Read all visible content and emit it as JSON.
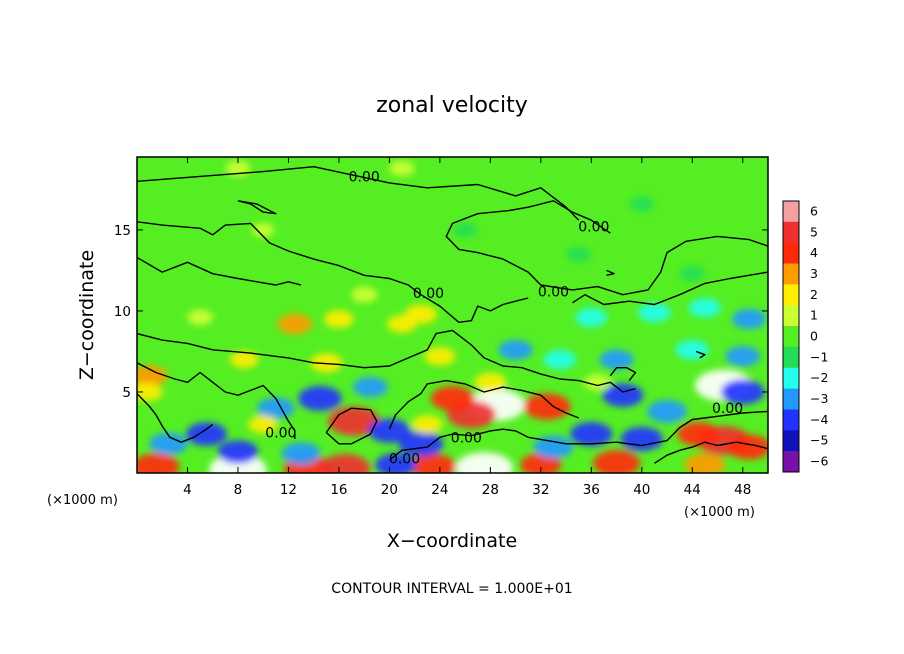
{
  "chart_data": {
    "type": "heatmap",
    "title": "zonal velocity",
    "xlabel": "X−coordinate",
    "ylabel": "Z−coordinate",
    "x_unit_left": "(×1000 m)",
    "x_unit_right": "(×1000 m)",
    "xlim": [
      0,
      50
    ],
    "ylim": [
      0,
      19.5
    ],
    "x_ticks": [
      4,
      8,
      12,
      16,
      20,
      24,
      28,
      32,
      36,
      40,
      44,
      48
    ],
    "y_ticks": [
      5,
      10,
      15
    ],
    "colorbar": {
      "ticks": [
        6,
        5,
        4,
        3,
        2,
        1,
        0,
        -1,
        -2,
        -3,
        -4,
        -5,
        -6
      ],
      "tick_labels": [
        "6",
        "5",
        "4",
        "3",
        "2",
        "1",
        "0",
        "−1",
        "−2",
        "−3",
        "−4",
        "−5",
        "−6"
      ],
      "colors": [
        "#f4a0a0",
        "#f03030",
        "#ff2a0a",
        "#ff9a00",
        "#ffee00",
        "#ccff33",
        "#55ee22",
        "#22dd55",
        "#22ffee",
        "#2299ff",
        "#2233ff",
        "#1111bb",
        "#7711aa"
      ]
    },
    "contour_labels": [
      {
        "text": "0.00",
        "x": 18.0,
        "z": 18.3
      },
      {
        "text": "0.00",
        "x": 36.2,
        "z": 15.2
      },
      {
        "text": "0.00",
        "x": 23.1,
        "z": 11.1
      },
      {
        "text": "0.00",
        "x": 33.0,
        "z": 11.2
      },
      {
        "text": "0.00",
        "x": 46.8,
        "z": 4.0
      },
      {
        "text": "0.00",
        "x": 11.4,
        "z": 2.5
      },
      {
        "text": "0.00",
        "x": 26.1,
        "z": 2.2
      },
      {
        "text": "0.00",
        "x": 21.2,
        "z": 0.9
      }
    ],
    "blobs": [
      {
        "x": 28.5,
        "z": 4.2,
        "v": 6.2
      },
      {
        "x": 26.5,
        "z": 3.6,
        "v": 4.8
      },
      {
        "x": 25.0,
        "z": 4.6,
        "v": 4.0
      },
      {
        "x": 32.5,
        "z": 4.1,
        "v": 4.5
      },
      {
        "x": 17.2,
        "z": 3.2,
        "v": 5.3
      },
      {
        "x": 46.5,
        "z": 2.0,
        "v": 5.4
      },
      {
        "x": 44.5,
        "z": 2.4,
        "v": 3.8
      },
      {
        "x": 48.5,
        "z": 1.6,
        "v": 4.0
      },
      {
        "x": 27.5,
        "z": 0.3,
        "v": 6.2
      },
      {
        "x": 8.0,
        "z": 0.2,
        "v": 6.2
      },
      {
        "x": 1.5,
        "z": 0.4,
        "v": 4.5
      },
      {
        "x": 13.5,
        "z": 0.3,
        "v": 4.5
      },
      {
        "x": 16.5,
        "z": 0.3,
        "v": 5.0
      },
      {
        "x": 23.5,
        "z": 0.4,
        "v": 4.2
      },
      {
        "x": 38.0,
        "z": 0.6,
        "v": 4.5
      },
      {
        "x": 32.0,
        "z": 0.5,
        "v": 3.6
      },
      {
        "x": 45.0,
        "z": 0.5,
        "v": 3.5
      },
      {
        "x": 46.5,
        "z": 5.4,
        "v": -6.2
      },
      {
        "x": 48.0,
        "z": 5.0,
        "v": -4.0
      },
      {
        "x": 36.0,
        "z": 2.4,
        "v": -3.8
      },
      {
        "x": 40.0,
        "z": 2.1,
        "v": -3.8
      },
      {
        "x": 33.0,
        "z": 1.6,
        "v": -3.4
      },
      {
        "x": 42.0,
        "z": 3.8,
        "v": -3.4
      },
      {
        "x": 38.5,
        "z": 4.8,
        "v": -3.6
      },
      {
        "x": 22.5,
        "z": 1.8,
        "v": -4.2
      },
      {
        "x": 20.0,
        "z": 2.6,
        "v": -3.8
      },
      {
        "x": 14.5,
        "z": 4.6,
        "v": -4.0
      },
      {
        "x": 11.0,
        "z": 4.0,
        "v": -3.0
      },
      {
        "x": 5.5,
        "z": 2.4,
        "v": -3.6
      },
      {
        "x": 8.0,
        "z": 1.3,
        "v": -3.5
      },
      {
        "x": 2.5,
        "z": 1.8,
        "v": -3.2
      },
      {
        "x": 13.0,
        "z": 1.2,
        "v": -3.3
      },
      {
        "x": 20.5,
        "z": 0.5,
        "v": -3.6
      },
      {
        "x": 18.5,
        "z": 5.3,
        "v": -2.6
      },
      {
        "x": 30.0,
        "z": 7.6,
        "v": -2.5
      },
      {
        "x": 36.0,
        "z": 9.6,
        "v": -2.2
      },
      {
        "x": 41.0,
        "z": 9.9,
        "v": -2.3
      },
      {
        "x": 45.0,
        "z": 10.2,
        "v": -2.2
      },
      {
        "x": 48.5,
        "z": 9.5,
        "v": -2.5
      },
      {
        "x": 44.0,
        "z": 7.6,
        "v": -2.4
      },
      {
        "x": 38.0,
        "z": 7.0,
        "v": -2.5
      },
      {
        "x": 48.0,
        "z": 7.2,
        "v": -2.6
      },
      {
        "x": 33.5,
        "z": 7.0,
        "v": -2.3
      },
      {
        "x": 44.0,
        "z": 12.3,
        "v": -1.2
      },
      {
        "x": 40.0,
        "z": 16.6,
        "v": -1.0
      },
      {
        "x": 26.0,
        "z": 15.0,
        "v": -0.9
      },
      {
        "x": 35.0,
        "z": 13.5,
        "v": -1.0
      },
      {
        "x": 16.0,
        "z": 9.5,
        "v": 1.8
      },
      {
        "x": 21.0,
        "z": 9.2,
        "v": 1.8
      },
      {
        "x": 12.5,
        "z": 9.2,
        "v": 2.6
      },
      {
        "x": 22.5,
        "z": 9.8,
        "v": 2.3
      },
      {
        "x": 18.0,
        "z": 11.0,
        "v": 1.3
      },
      {
        "x": 15.0,
        "z": 6.8,
        "v": 2.2
      },
      {
        "x": 24.0,
        "z": 7.2,
        "v": 2.0
      },
      {
        "x": 8.5,
        "z": 7.0,
        "v": 1.6
      },
      {
        "x": 10.0,
        "z": 3.0,
        "v": 1.8
      },
      {
        "x": 1.0,
        "z": 6.0,
        "v": 2.8
      },
      {
        "x": 0.8,
        "z": 5.0,
        "v": 2.0
      },
      {
        "x": 5.0,
        "z": 9.6,
        "v": 1.2
      },
      {
        "x": 8.0,
        "z": 18.8,
        "v": 1.1
      },
      {
        "x": 21.0,
        "z": 18.8,
        "v": 1.1
      },
      {
        "x": 10.0,
        "z": 15.0,
        "v": 0.6
      },
      {
        "x": 28.0,
        "z": 5.6,
        "v": 2.2
      },
      {
        "x": 23.0,
        "z": 3.0,
        "v": 2.0
      },
      {
        "x": 36.5,
        "z": 5.6,
        "v": 1.4
      }
    ],
    "contours": [
      [
        [
          0.0,
          18.0
        ],
        [
          5.0,
          18.3
        ],
        [
          10.0,
          18.6
        ],
        [
          14.0,
          18.9
        ],
        [
          17.0,
          18.4
        ],
        [
          20.0,
          17.9
        ],
        [
          23.0,
          17.6
        ],
        [
          27.0,
          17.8
        ],
        [
          30.0,
          17.1
        ],
        [
          32.0,
          17.6
        ],
        [
          34.0,
          16.4
        ],
        [
          35.0,
          15.6
        ]
      ],
      [
        [
          0.0,
          15.5
        ],
        [
          2.0,
          15.3
        ],
        [
          5.0,
          15.1
        ],
        [
          6.0,
          14.7
        ],
        [
          7.0,
          15.3
        ],
        [
          9.0,
          15.4
        ],
        [
          10.5,
          14.2
        ],
        [
          12.0,
          13.7
        ],
        [
          14.0,
          13.2
        ],
        [
          16.0,
          12.8
        ],
        [
          18.0,
          12.2
        ],
        [
          20.0,
          12.0
        ],
        [
          21.5,
          11.6
        ],
        [
          22.5,
          11.0
        ],
        [
          24.0,
          10.3
        ],
        [
          25.5,
          9.3
        ],
        [
          26.5,
          9.4
        ],
        [
          27.0,
          10.3
        ],
        [
          28.0,
          10.0
        ],
        [
          29.0,
          10.4
        ],
        [
          30.0,
          10.6
        ],
        [
          31.0,
          10.8
        ]
      ],
      [
        [
          0.0,
          13.3
        ],
        [
          2.0,
          12.4
        ],
        [
          4.0,
          13.0
        ],
        [
          6.0,
          12.3
        ],
        [
          8.0,
          12.0
        ],
        [
          9.5,
          11.8
        ],
        [
          11.0,
          11.6
        ],
        [
          12.0,
          11.8
        ],
        [
          13.0,
          11.6
        ]
      ],
      [
        [
          37.5,
          14.8
        ],
        [
          36.0,
          15.6
        ],
        [
          34.5,
          16.1
        ],
        [
          33.0,
          16.8
        ],
        [
          31.0,
          16.4
        ],
        [
          29.5,
          16.2
        ],
        [
          27.0,
          16.0
        ],
        [
          25.0,
          15.4
        ],
        [
          24.5,
          14.6
        ],
        [
          25.5,
          13.8
        ],
        [
          27.0,
          13.6
        ],
        [
          29.0,
          13.2
        ],
        [
          31.0,
          12.4
        ],
        [
          32.0,
          11.6
        ],
        [
          34.5,
          11.3
        ],
        [
          36.5,
          11.5
        ],
        [
          38.5,
          11.0
        ],
        [
          40.5,
          11.3
        ],
        [
          41.5,
          12.4
        ],
        [
          42.0,
          13.6
        ],
        [
          43.5,
          14.3
        ],
        [
          46.0,
          14.6
        ],
        [
          48.5,
          14.4
        ],
        [
          50.0,
          14.0
        ]
      ],
      [
        [
          34.5,
          10.5
        ],
        [
          35.5,
          11.0
        ],
        [
          37.0,
          10.4
        ],
        [
          39.0,
          10.6
        ],
        [
          41.0,
          10.4
        ],
        [
          43.0,
          11.0
        ],
        [
          45.0,
          11.7
        ],
        [
          47.0,
          12.0
        ],
        [
          50.0,
          12.4
        ]
      ],
      [
        [
          0.0,
          8.6
        ],
        [
          2.0,
          8.2
        ],
        [
          4.0,
          8.0
        ],
        [
          6.0,
          7.6
        ],
        [
          9.0,
          7.4
        ],
        [
          12.0,
          7.1
        ],
        [
          14.0,
          6.8
        ],
        [
          16.0,
          6.7
        ],
        [
          18.0,
          6.5
        ],
        [
          20.0,
          6.6
        ],
        [
          21.5,
          7.1
        ],
        [
          23.0,
          7.6
        ],
        [
          23.7,
          8.6
        ],
        [
          25.0,
          8.8
        ],
        [
          26.5,
          7.9
        ],
        [
          27.5,
          7.1
        ],
        [
          29.0,
          6.6
        ],
        [
          30.5,
          6.5
        ],
        [
          32.0,
          6.1
        ],
        [
          33.5,
          5.8
        ],
        [
          35.0,
          5.7
        ],
        [
          36.5,
          5.4
        ],
        [
          37.5,
          5.6
        ],
        [
          38.5,
          5.0
        ],
        [
          39.5,
          5.2
        ]
      ],
      [
        [
          0.0,
          6.8
        ],
        [
          1.5,
          6.2
        ],
        [
          3.0,
          5.8
        ],
        [
          4.0,
          5.6
        ],
        [
          5.0,
          6.2
        ],
        [
          6.0,
          5.6
        ],
        [
          7.0,
          5.0
        ],
        [
          8.0,
          4.8
        ],
        [
          9.0,
          5.1
        ],
        [
          10.0,
          5.4
        ],
        [
          11.0,
          4.6
        ],
        [
          11.5,
          3.9
        ],
        [
          12.0,
          3.2
        ],
        [
          12.5,
          2.6
        ],
        [
          12.5,
          2.1
        ]
      ],
      [
        [
          0.0,
          4.9
        ],
        [
          1.0,
          4.1
        ],
        [
          1.5,
          3.6
        ],
        [
          2.0,
          2.9
        ],
        [
          2.6,
          2.2
        ],
        [
          3.5,
          1.9
        ],
        [
          4.5,
          2.2
        ],
        [
          5.5,
          2.7
        ],
        [
          6.0,
          3.0
        ]
      ],
      [
        [
          15.0,
          2.5
        ],
        [
          16.0,
          3.6
        ],
        [
          17.0,
          4.0
        ],
        [
          18.5,
          3.9
        ],
        [
          19.0,
          3.2
        ],
        [
          18.5,
          2.4
        ],
        [
          17.0,
          1.8
        ],
        [
          16.0,
          1.8
        ],
        [
          15.0,
          2.5
        ]
      ],
      [
        [
          20.0,
          2.7
        ],
        [
          20.5,
          3.6
        ],
        [
          21.5,
          4.4
        ],
        [
          22.5,
          4.9
        ],
        [
          23.0,
          5.5
        ],
        [
          24.5,
          5.7
        ],
        [
          26.0,
          5.5
        ],
        [
          27.5,
          5.0
        ],
        [
          29.0,
          5.3
        ],
        [
          30.5,
          5.1
        ],
        [
          32.0,
          4.8
        ],
        [
          33.0,
          4.1
        ],
        [
          34.0,
          3.7
        ],
        [
          35.0,
          3.4
        ]
      ],
      [
        [
          20.0,
          0.8
        ],
        [
          21.0,
          1.4
        ],
        [
          23.0,
          1.6
        ],
        [
          24.0,
          2.2
        ],
        [
          25.0,
          2.4
        ],
        [
          26.5,
          2.3
        ],
        [
          28.0,
          2.6
        ],
        [
          29.0,
          2.7
        ],
        [
          30.0,
          2.6
        ],
        [
          31.0,
          2.2
        ],
        [
          32.5,
          2.0
        ],
        [
          34.0,
          1.8
        ],
        [
          36.0,
          1.8
        ],
        [
          38.0,
          1.9
        ],
        [
          40.0,
          1.7
        ],
        [
          42.0,
          2.0
        ],
        [
          43.0,
          2.8
        ],
        [
          44.0,
          3.3
        ],
        [
          46.0,
          3.5
        ],
        [
          48.0,
          3.7
        ],
        [
          50.0,
          3.8
        ]
      ],
      [
        [
          41.0,
          0.6
        ],
        [
          42.0,
          1.1
        ],
        [
          43.0,
          1.4
        ],
        [
          44.0,
          1.6
        ],
        [
          45.0,
          1.9
        ],
        [
          46.0,
          1.7
        ],
        [
          47.5,
          1.9
        ],
        [
          49.0,
          1.7
        ],
        [
          50.0,
          1.5
        ]
      ],
      [
        [
          8.0,
          16.8
        ],
        [
          9.0,
          16.6
        ],
        [
          10.0,
          16.1
        ],
        [
          11.0,
          16.0
        ],
        [
          9.5,
          16.6
        ],
        [
          8.0,
          16.8
        ]
      ],
      [
        [
          37.2,
          12.5
        ],
        [
          37.8,
          12.3
        ],
        [
          37.2,
          12.2
        ]
      ],
      [
        [
          44.3,
          7.5
        ],
        [
          45.0,
          7.3
        ],
        [
          44.6,
          7.1
        ]
      ],
      [
        [
          37.5,
          6.0
        ],
        [
          38.0,
          6.5
        ],
        [
          38.8,
          6.5
        ],
        [
          39.5,
          6.2
        ],
        [
          39.0,
          5.7
        ]
      ]
    ],
    "footer": "CONTOUR INTERVAL = 1.000E+01"
  }
}
